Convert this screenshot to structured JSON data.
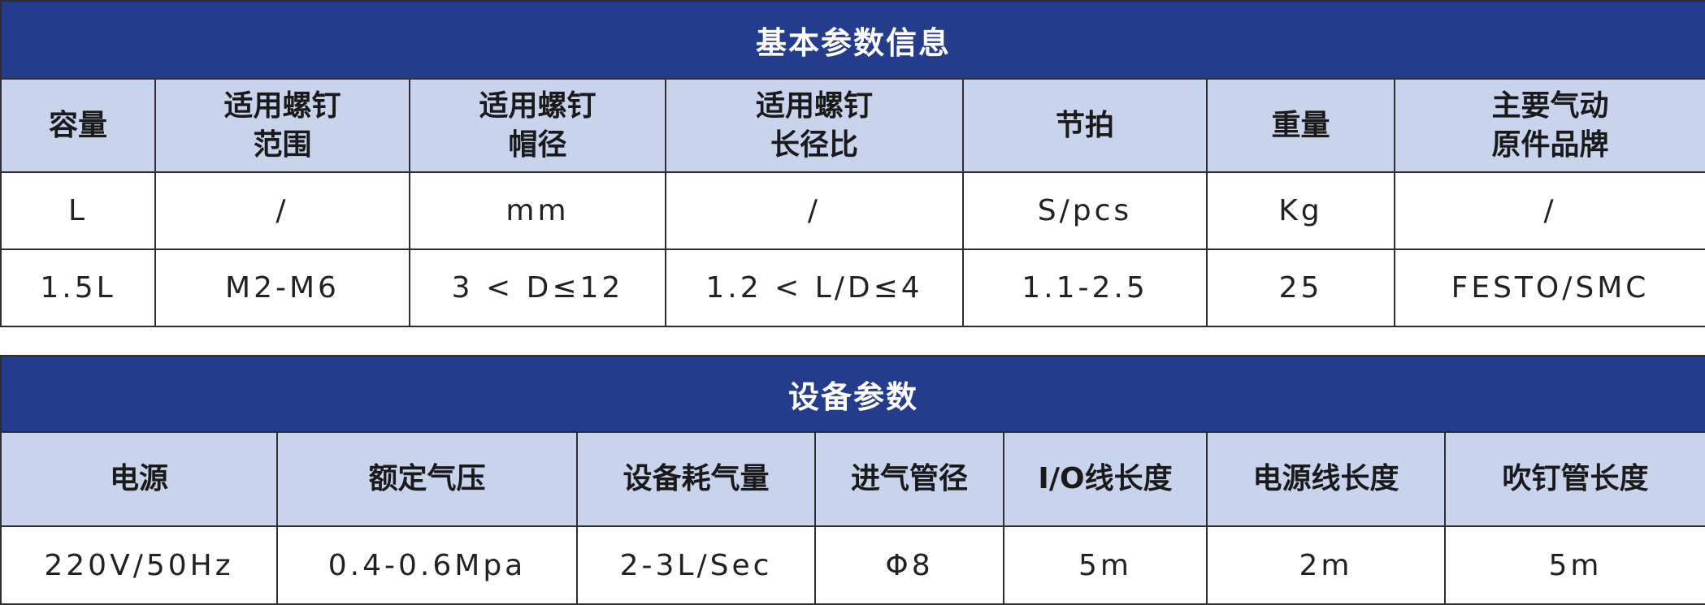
{
  "colors": {
    "title_bg": "#233d8c",
    "header_bg": "#c8d3ec",
    "border": "#2e2e2e"
  },
  "basic": {
    "title": "基本参数信息",
    "headers": [
      "容量",
      "适用螺钉\n范围",
      "适用螺钉\n帽径",
      "适用螺钉\n长径比",
      "节拍",
      "重量",
      "主要气动\n原件品牌"
    ],
    "units": [
      "L",
      "/",
      "mm",
      "/",
      "S/pcs",
      "Kg",
      "/"
    ],
    "values": [
      "1.5L",
      "M2-M6",
      "3 < D≤12",
      "1.2 < L/D≤4",
      "1.1-2.5",
      "25",
      "FESTO/SMC"
    ]
  },
  "equipment": {
    "title": "设备参数",
    "headers": [
      "电源",
      "额定气压",
      "设备耗气量",
      "进气管径",
      "I/O线长度",
      "电源线长度",
      "吹钉管长度"
    ],
    "values": [
      "220V/50Hz",
      "0.4-0.6Mpa",
      "2-3L/Sec",
      "Φ8",
      "5m",
      "2m",
      "5m"
    ]
  }
}
